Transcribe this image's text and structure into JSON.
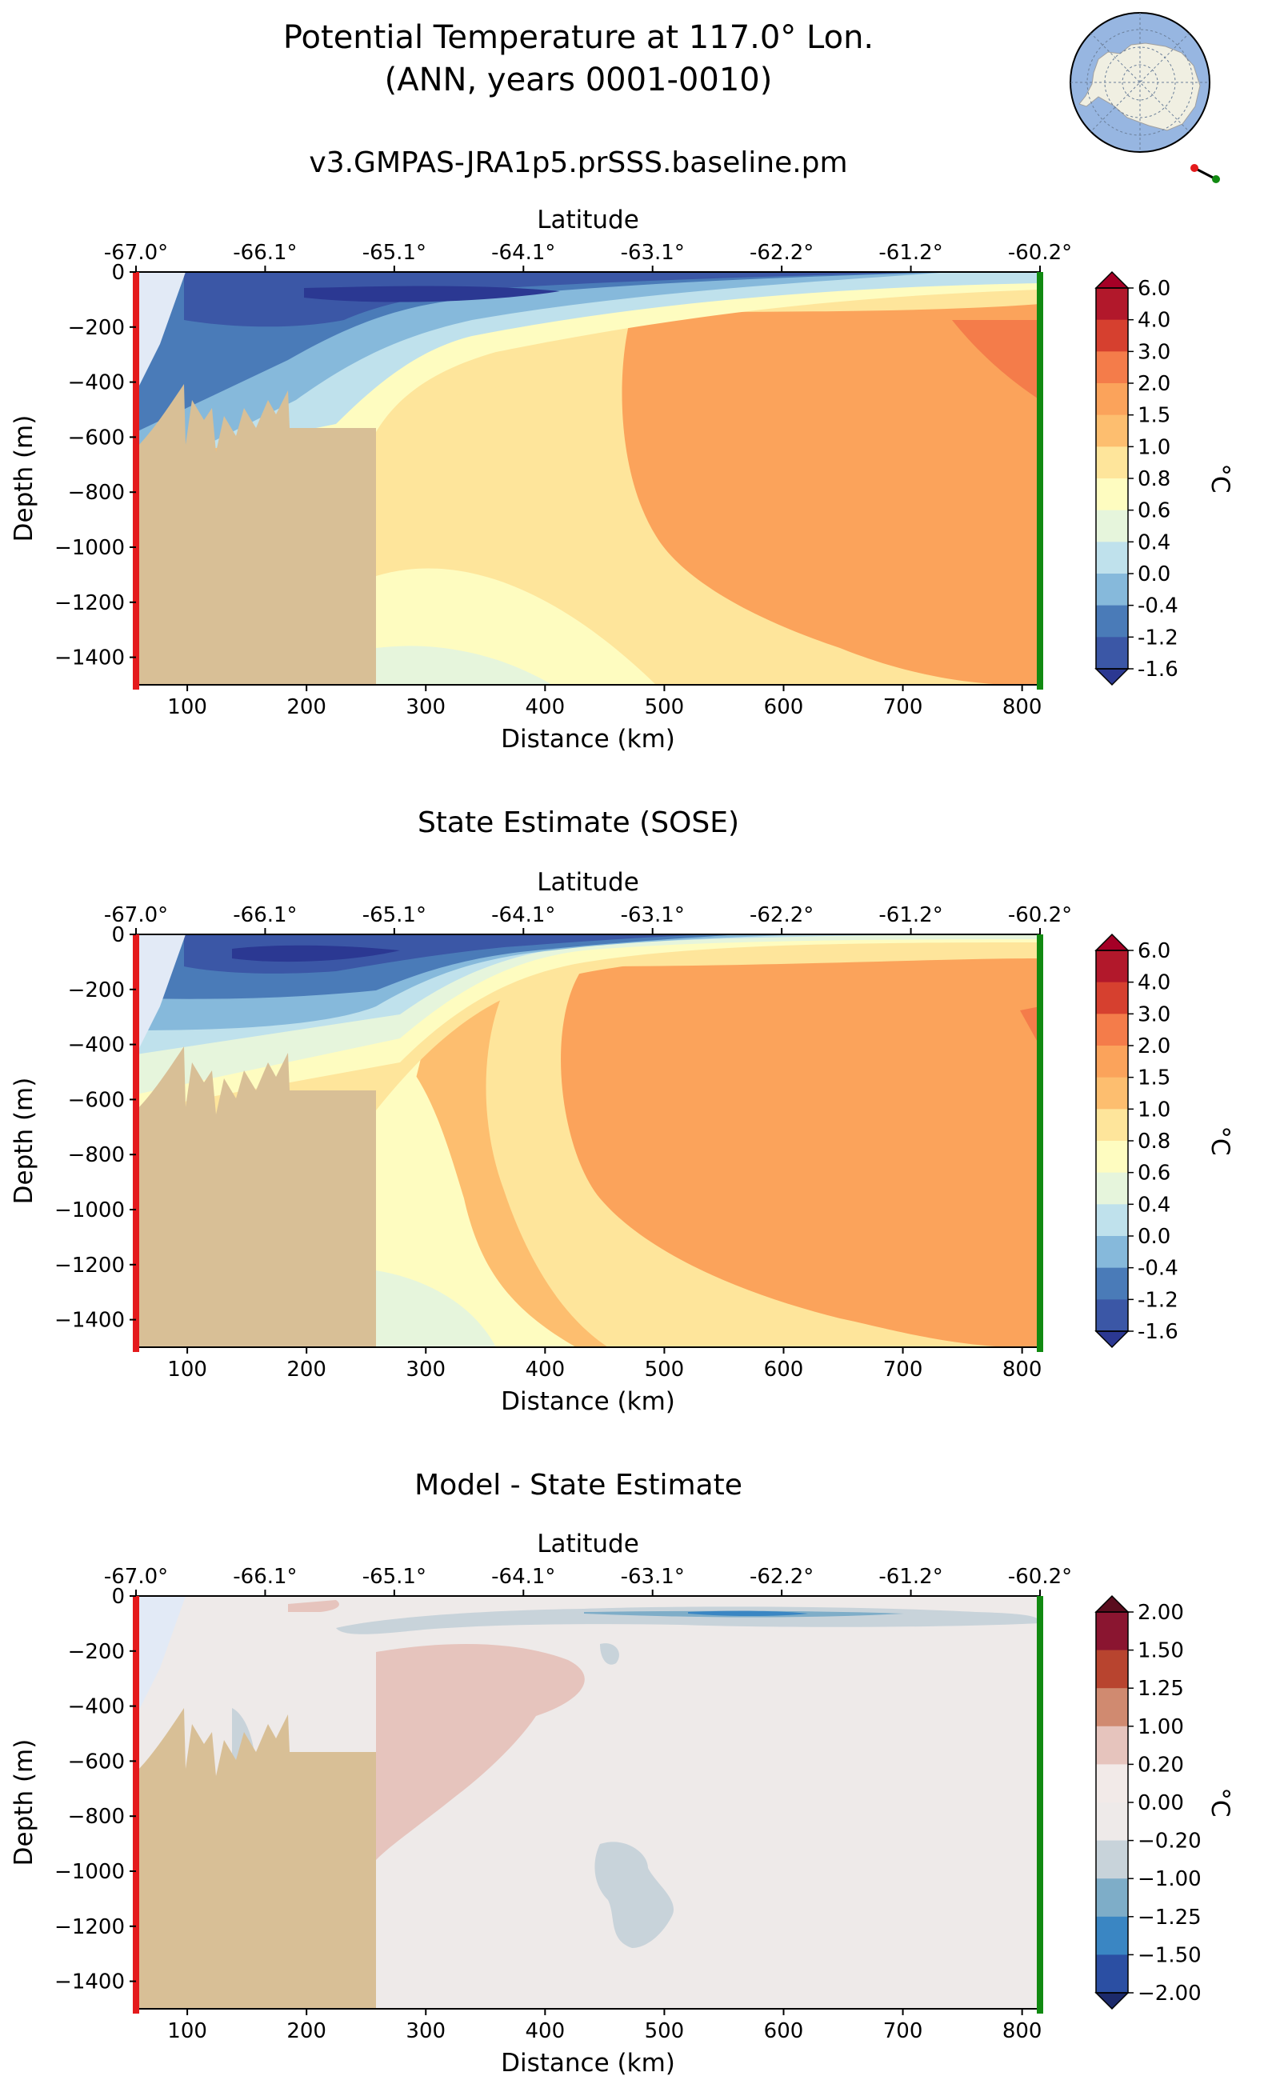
{
  "header": {
    "title_line1": "Potential Temperature at 117.0° Lon.",
    "title_line2": "(ANN, years 0001-0010)"
  },
  "colors": {
    "land": "#d8bf96",
    "ice": "#e2eaf6",
    "start_marker": "#e41a1c",
    "end_marker": "#118a11",
    "ocean_map": "#97b6e1",
    "antarctica": "#f0efe2"
  },
  "panels": [
    {
      "id": "model",
      "subtitle": "v3.GMPAS-JRA1p5.prSSS.baseline.pm",
      "cbar_label": "°C",
      "cbar_ticks": [
        "6.0",
        "4.0",
        "3.0",
        "2.0",
        "1.5",
        "1.0",
        "0.8",
        "0.6",
        "0.4",
        "0.0",
        "-0.4",
        "-1.2",
        "-1.6"
      ],
      "cbar_colors": [
        "#b2182b",
        "#d6402f",
        "#f47c4a",
        "#fba35b",
        "#fdbe6f",
        "#fee59b",
        "#fefcc0",
        "#e6f5dc",
        "#bfe1ec",
        "#86b9db",
        "#4a7bb8",
        "#3b57a6"
      ],
      "cbar_extend_colors": {
        "max": "#a50026",
        "min": "#2b3892"
      }
    },
    {
      "id": "sose",
      "subtitle": "State Estimate (SOSE)",
      "cbar_label": "°C",
      "cbar_ticks": [
        "6.0",
        "4.0",
        "3.0",
        "2.0",
        "1.5",
        "1.0",
        "0.8",
        "0.6",
        "0.4",
        "0.0",
        "-0.4",
        "-1.2",
        "-1.6"
      ],
      "cbar_colors": [
        "#b2182b",
        "#d6402f",
        "#f47c4a",
        "#fba35b",
        "#fdbe6f",
        "#fee59b",
        "#fefcc0",
        "#e6f5dc",
        "#bfe1ec",
        "#86b9db",
        "#4a7bb8",
        "#3b57a6"
      ],
      "cbar_extend_colors": {
        "max": "#a50026",
        "min": "#2b3892"
      }
    },
    {
      "id": "diff",
      "subtitle": "Model - State Estimate",
      "cbar_label": "°C",
      "cbar_ticks": [
        "2.00",
        "1.50",
        "1.25",
        "1.00",
        "0.20",
        "0.00",
        "−0.20",
        "−1.00",
        "−1.25",
        "−1.50",
        "−2.00"
      ],
      "cbar_colors": [
        "#8a1530",
        "#b8442f",
        "#d08a70",
        "#e6c4bd",
        "#f2eae8",
        "#eeeae9",
        "#c8d3da",
        "#7eadc8",
        "#3a86c3",
        "#2b4fa3"
      ],
      "cbar_extend_colors": {
        "max": "#5a0d1e",
        "min": "#1c2a6b"
      }
    }
  ],
  "chart_data": [
    {
      "type": "contourf",
      "title": "v3.GMPAS-JRA1p5.prSSS.baseline.pm",
      "xlabel": "Distance (km)",
      "ylabel": "Depth (m)",
      "top_xlabel": "Latitude",
      "xlim": [
        57,
        815
      ],
      "ylim": [
        -1500,
        0
      ],
      "x_ticks": [
        100,
        200,
        300,
        400,
        500,
        600,
        700,
        800
      ],
      "y_ticks": [
        0,
        -200,
        -400,
        -600,
        -800,
        -1000,
        -1200,
        -1400
      ],
      "top_ticks": [
        "-67.0°",
        "-66.1°",
        "-65.1°",
        "-64.1°",
        "-63.1°",
        "-62.2°",
        "-61.2°",
        "-60.2°"
      ],
      "colorbar_label": "°C",
      "levels": [
        -1.6,
        -1.2,
        -0.4,
        0.0,
        0.4,
        0.6,
        0.8,
        1.0,
        1.5,
        2.0,
        3.0,
        4.0,
        6.0
      ],
      "extend": "both"
    },
    {
      "type": "contourf",
      "title": "State Estimate (SOSE)",
      "xlabel": "Distance (km)",
      "ylabel": "Depth (m)",
      "top_xlabel": "Latitude",
      "xlim": [
        57,
        815
      ],
      "ylim": [
        -1500,
        0
      ],
      "x_ticks": [
        100,
        200,
        300,
        400,
        500,
        600,
        700,
        800
      ],
      "y_ticks": [
        0,
        -200,
        -400,
        -600,
        -800,
        -1000,
        -1200,
        -1400
      ],
      "top_ticks": [
        "-67.0°",
        "-66.1°",
        "-65.1°",
        "-64.1°",
        "-63.1°",
        "-62.2°",
        "-61.2°",
        "-60.2°"
      ],
      "colorbar_label": "°C",
      "levels": [
        -1.6,
        -1.2,
        -0.4,
        0.0,
        0.4,
        0.6,
        0.8,
        1.0,
        1.5,
        2.0,
        3.0,
        4.0,
        6.0
      ],
      "extend": "both"
    },
    {
      "type": "contourf",
      "title": "Model - State Estimate",
      "xlabel": "Distance (km)",
      "ylabel": "Depth (m)",
      "top_xlabel": "Latitude",
      "xlim": [
        57,
        815
      ],
      "ylim": [
        -1500,
        0
      ],
      "x_ticks": [
        100,
        200,
        300,
        400,
        500,
        600,
        700,
        800
      ],
      "y_ticks": [
        0,
        -200,
        -400,
        -600,
        -800,
        -1000,
        -1200,
        -1400
      ],
      "top_ticks": [
        "-67.0°",
        "-66.1°",
        "-65.1°",
        "-64.1°",
        "-63.1°",
        "-62.2°",
        "-61.2°",
        "-60.2°"
      ],
      "colorbar_label": "°C",
      "levels": [
        -2.0,
        -1.5,
        -1.25,
        -1.0,
        -0.2,
        0.0,
        0.2,
        1.0,
        1.25,
        1.5,
        2.0
      ],
      "extend": "both"
    }
  ]
}
